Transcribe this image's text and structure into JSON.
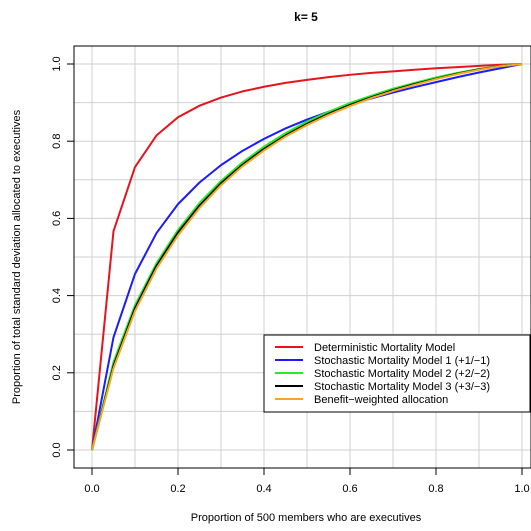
{
  "chart_data": {
    "type": "line",
    "title": "k= 5",
    "xlabel": "Proportion of 500 members who are executives",
    "ylabel": "Proportion of total standard deviation allocated to executives",
    "xlim": [
      0,
      1
    ],
    "ylim": [
      0,
      1
    ],
    "x_ticks": [
      "0.0",
      "0.2",
      "0.4",
      "0.6",
      "0.8",
      "1.0"
    ],
    "y_ticks": [
      "0.0",
      "0.2",
      "0.4",
      "0.6",
      "0.8",
      "1.0"
    ],
    "grid": true,
    "legend_position": "bottom-right",
    "x": [
      0,
      0.05,
      0.1,
      0.15,
      0.2,
      0.25,
      0.3,
      0.35,
      0.4,
      0.45,
      0.5,
      0.55,
      0.6,
      0.65,
      0.7,
      0.75,
      0.8,
      0.85,
      0.9,
      0.95,
      1.0
    ],
    "series": [
      {
        "name": "Deterministic Mortality Model",
        "color": "#e8141c",
        "values": [
          0,
          0.567,
          0.733,
          0.815,
          0.862,
          0.892,
          0.913,
          0.929,
          0.941,
          0.951,
          0.959,
          0.966,
          0.972,
          0.977,
          0.981,
          0.985,
          0.989,
          0.992,
          0.995,
          0.998,
          1.0
        ]
      },
      {
        "name": "Stochastic Mortality Model 1 (+1/−1)",
        "color": "#1c1cff",
        "values": [
          0,
          0.292,
          0.456,
          0.562,
          0.637,
          0.693,
          0.738,
          0.775,
          0.806,
          0.833,
          0.856,
          0.876,
          0.894,
          0.911,
          0.926,
          0.94,
          0.953,
          0.966,
          0.978,
          0.989,
          1.0
        ]
      },
      {
        "name": "Stochastic Mortality Model 2 (+2/−2)",
        "color": "#22ee22",
        "values": [
          0,
          0.228,
          0.375,
          0.484,
          0.57,
          0.64,
          0.697,
          0.745,
          0.786,
          0.821,
          0.851,
          0.876,
          0.899,
          0.918,
          0.936,
          0.951,
          0.965,
          0.977,
          0.987,
          0.995,
          1.0
        ]
      },
      {
        "name": "Stochastic Mortality Model 3 (+3/−3)",
        "color": "#000000",
        "values": [
          0,
          0.218,
          0.367,
          0.477,
          0.563,
          0.633,
          0.691,
          0.739,
          0.78,
          0.815,
          0.845,
          0.871,
          0.894,
          0.914,
          0.932,
          0.948,
          0.962,
          0.975,
          0.986,
          0.994,
          1.0
        ]
      },
      {
        "name": "Benefit−weighted allocation",
        "color": "#f5a623",
        "values": [
          0,
          0.212,
          0.36,
          0.47,
          0.556,
          0.627,
          0.686,
          0.735,
          0.776,
          0.812,
          0.842,
          0.868,
          0.891,
          0.912,
          0.93,
          0.946,
          0.961,
          0.974,
          0.985,
          0.994,
          1.0
        ]
      }
    ]
  }
}
